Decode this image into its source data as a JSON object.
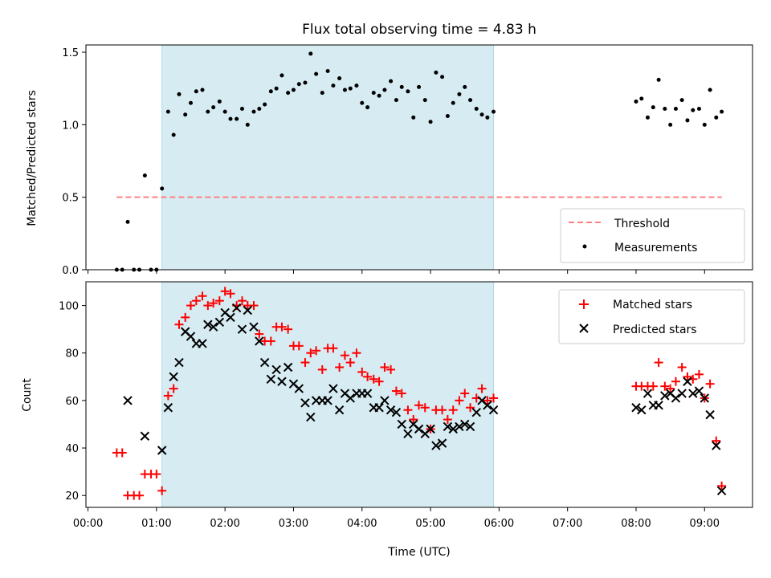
{
  "chart_data": {
    "title": "Flux total observing time = 4.83 h",
    "xlabel": "Time (UTC)",
    "x_tick_labels": [
      "00:00",
      "01:00",
      "02:00",
      "03:00",
      "04:00",
      "05:00",
      "06:00",
      "07:00",
      "08:00",
      "09:00"
    ],
    "x_range_hours": [
      -0.03,
      9.7
    ],
    "observing_window_hours": [
      1.08,
      5.92
    ],
    "observing_window_color": "#add8e6",
    "panels": [
      {
        "id": "ratio",
        "type": "scatter",
        "ylabel": "Matched/Predicted stars",
        "ylim": [
          0,
          1.55
        ],
        "y_ticks": [
          0.0,
          0.5,
          1.0,
          1.5
        ],
        "y_tick_labels": [
          "0.0",
          "0.5",
          "1.0",
          "1.5"
        ],
        "threshold": {
          "name": "Threshold",
          "value": 0.5,
          "x_range_hours": [
            0.42,
            9.25
          ],
          "color": "#ff7f7f"
        },
        "series": [
          {
            "name": "Measurements",
            "color": "#000000",
            "marker": "dot",
            "x": [
              0.42,
              0.5,
              0.58,
              0.67,
              0.75,
              0.83,
              0.92,
              1.0,
              1.08,
              1.17,
              1.25,
              1.33,
              1.42,
              1.5,
              1.58,
              1.67,
              1.75,
              1.83,
              1.92,
              2.0,
              2.08,
              2.17,
              2.25,
              2.33,
              2.42,
              2.5,
              2.58,
              2.67,
              2.75,
              2.83,
              2.92,
              3.0,
              3.08,
              3.17,
              3.25,
              3.33,
              3.42,
              3.5,
              3.58,
              3.67,
              3.75,
              3.83,
              3.92,
              4.0,
              4.08,
              4.17,
              4.25,
              4.33,
              4.42,
              4.5,
              4.58,
              4.67,
              4.75,
              4.83,
              4.92,
              5.0,
              5.08,
              5.17,
              5.25,
              5.33,
              5.42,
              5.5,
              5.58,
              5.67,
              5.75,
              5.83,
              5.92,
              8.0,
              8.08,
              8.17,
              8.25,
              8.33,
              8.42,
              8.5,
              8.58,
              8.67,
              8.75,
              8.83,
              8.92,
              9.0,
              9.08,
              9.17,
              9.25
            ],
            "y": [
              0,
              0,
              0.33,
              0,
              0,
              0.65,
              0,
              0,
              0.56,
              1.09,
              0.93,
              1.21,
              1.07,
              1.15,
              1.23,
              1.24,
              1.09,
              1.12,
              1.16,
              1.09,
              1.04,
              1.04,
              1.11,
              1.0,
              1.09,
              1.11,
              1.14,
              1.23,
              1.25,
              1.34,
              1.22,
              1.24,
              1.28,
              1.29,
              1.49,
              1.35,
              1.22,
              1.37,
              1.27,
              1.32,
              1.24,
              1.25,
              1.27,
              1.15,
              1.12,
              1.22,
              1.2,
              1.24,
              1.3,
              1.17,
              1.26,
              1.23,
              1.05,
              1.26,
              1.17,
              1.02,
              1.36,
              1.33,
              1.06,
              1.15,
              1.21,
              1.26,
              1.17,
              1.11,
              1.07,
              1.05,
              1.09,
              1.16,
              1.18,
              1.05,
              1.12,
              1.31,
              1.11,
              1.0,
              1.11,
              1.17,
              1.03,
              1.1,
              1.11,
              1.0,
              1.24,
              1.05,
              1.09
            ]
          }
        ],
        "legend": {
          "position": "lower-right",
          "entries": [
            "Threshold",
            "Measurements"
          ]
        }
      },
      {
        "id": "counts",
        "type": "scatter",
        "ylabel": "Count",
        "ylim": [
          15,
          110
        ],
        "y_ticks": [
          20,
          40,
          60,
          80,
          100
        ],
        "y_tick_labels": [
          "20",
          "40",
          "60",
          "80",
          "100"
        ],
        "series": [
          {
            "name": "Matched stars",
            "color": "#ff0000",
            "marker": "plus",
            "x": [
              0.42,
              0.5,
              0.58,
              0.67,
              0.75,
              0.83,
              0.92,
              1.0,
              1.08,
              1.17,
              1.25,
              1.33,
              1.42,
              1.5,
              1.58,
              1.67,
              1.75,
              1.83,
              1.92,
              2.0,
              2.08,
              2.17,
              2.25,
              2.33,
              2.42,
              2.5,
              2.58,
              2.67,
              2.75,
              2.83,
              2.92,
              3.0,
              3.08,
              3.17,
              3.25,
              3.33,
              3.42,
              3.5,
              3.58,
              3.67,
              3.75,
              3.83,
              3.92,
              4.0,
              4.08,
              4.17,
              4.25,
              4.33,
              4.42,
              4.5,
              4.58,
              4.67,
              4.75,
              4.83,
              4.92,
              5.0,
              5.08,
              5.17,
              5.25,
              5.33,
              5.42,
              5.5,
              5.58,
              5.67,
              5.75,
              5.83,
              5.92,
              8.0,
              8.08,
              8.17,
              8.25,
              8.33,
              8.42,
              8.5,
              8.58,
              8.67,
              8.75,
              8.83,
              8.92,
              9.0,
              9.08,
              9.17,
              9.25
            ],
            "y": [
              38,
              38,
              20,
              20,
              20,
              29,
              29,
              29,
              22,
              62,
              65,
              92,
              95,
              100,
              102,
              104,
              100,
              101,
              102,
              106,
              105,
              100,
              102,
              100,
              100,
              88,
              85,
              85,
              91,
              91,
              90,
              83,
              83,
              76,
              80,
              81,
              73,
              82,
              82,
              74,
              79,
              76,
              80,
              72,
              70,
              69,
              68,
              74,
              73,
              64,
              63,
              56,
              52,
              58,
              57,
              48,
              56,
              56,
              52,
              56,
              60,
              63,
              57,
              61,
              65,
              60,
              61,
              66,
              66,
              66,
              66,
              76,
              66,
              65,
              68,
              74,
              70,
              69,
              71,
              61,
              67,
              43,
              24
            ]
          },
          {
            "name": "Predicted stars",
            "color": "#000000",
            "marker": "cross",
            "x": [
              0.58,
              0.83,
              1.08,
              1.17,
              1.25,
              1.33,
              1.42,
              1.5,
              1.58,
              1.67,
              1.75,
              1.83,
              1.92,
              2.0,
              2.08,
              2.17,
              2.25,
              2.33,
              2.42,
              2.5,
              2.58,
              2.67,
              2.75,
              2.83,
              2.92,
              3.0,
              3.08,
              3.17,
              3.25,
              3.33,
              3.42,
              3.5,
              3.58,
              3.67,
              3.75,
              3.83,
              3.92,
              4.0,
              4.08,
              4.17,
              4.25,
              4.33,
              4.42,
              4.5,
              4.58,
              4.67,
              4.75,
              4.83,
              4.92,
              5.0,
              5.08,
              5.17,
              5.25,
              5.33,
              5.42,
              5.5,
              5.58,
              5.67,
              5.75,
              5.83,
              5.92,
              8.0,
              8.08,
              8.17,
              8.25,
              8.33,
              8.42,
              8.5,
              8.58,
              8.67,
              8.75,
              8.83,
              8.92,
              9.0,
              9.08,
              9.17,
              9.25
            ],
            "y": [
              60,
              45,
              39,
              57,
              70,
              76,
              89,
              87,
              84,
              84,
              92,
              91,
              93,
              97,
              95,
              99,
              90,
              98,
              91,
              85,
              76,
              69,
              73,
              68,
              74,
              67,
              65,
              59,
              53,
              60,
              60,
              60,
              65,
              56,
              63,
              61,
              63,
              63,
              63,
              57,
              57,
              60,
              56,
              55,
              50,
              46,
              50,
              48,
              46,
              48,
              41,
              42,
              49,
              48,
              49,
              50,
              49,
              55,
              60,
              58,
              56,
              57,
              56,
              63,
              58,
              58,
              62,
              63,
              61,
              63,
              68,
              63,
              64,
              61,
              54,
              41,
              22
            ]
          }
        ],
        "legend": {
          "position": "upper-right",
          "entries": [
            "Matched stars",
            "Predicted stars"
          ]
        }
      }
    ]
  }
}
